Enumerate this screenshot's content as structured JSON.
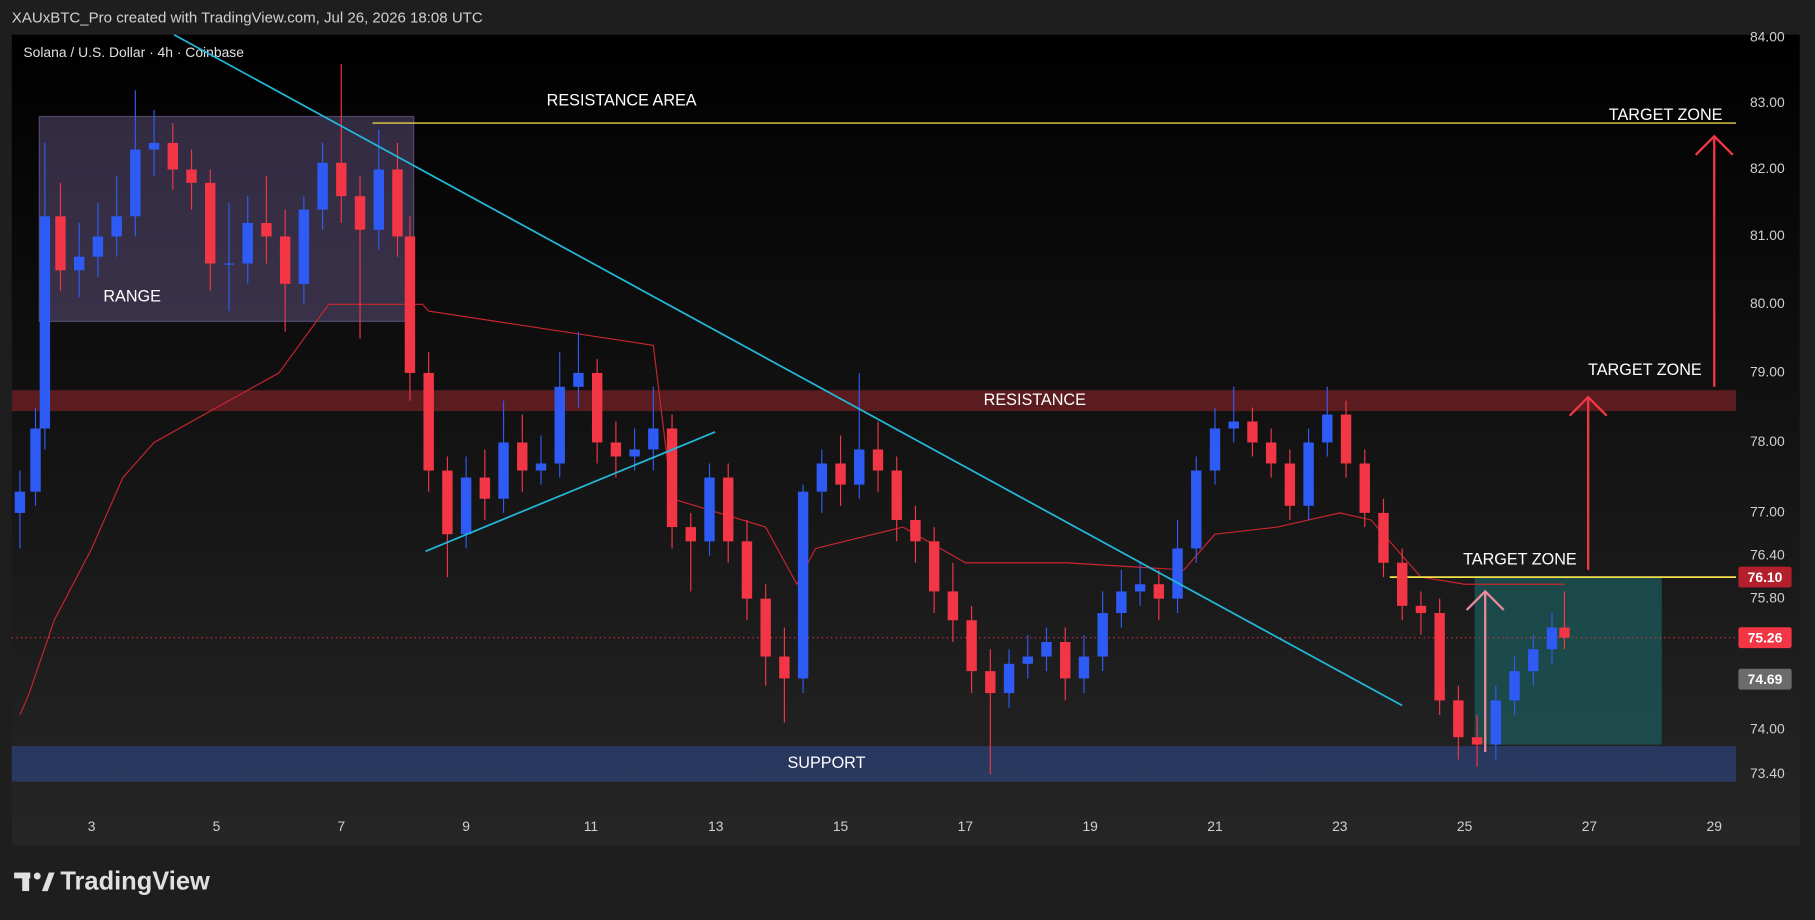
{
  "header": "XAUxBTC_Pro created with TradingView.com, Jul 26, 2026 18:08 UTC",
  "brand": "TradingView",
  "chart_data": {
    "type": "candlestick",
    "title": "Solana / U.S. Dollar · 4h · Coinbase",
    "log_scale": true,
    "grid": false,
    "up_color": "#2f5bf5",
    "down_color": "#f23645",
    "xlim": [
      1.72,
      29.35
    ],
    "xticks": [
      3,
      5,
      7,
      9,
      11,
      13,
      15,
      17,
      19,
      21,
      23,
      25,
      27,
      29
    ],
    "ylim": [
      72.92,
      84.05
    ],
    "yticks": [
      {
        "value": 84,
        "label": "84.00"
      },
      {
        "value": 83,
        "label": "83.00"
      },
      {
        "value": 82,
        "label": "82.00"
      },
      {
        "value": 81,
        "label": "81.00"
      },
      {
        "value": 80,
        "label": "80.00"
      },
      {
        "value": 79,
        "label": "79.00"
      },
      {
        "value": 78,
        "label": "78.00"
      },
      {
        "value": 77,
        "label": "77.00"
      },
      {
        "value": 76.4,
        "label": "76.40"
      },
      {
        "value": 75.8,
        "label": "75.80"
      },
      {
        "value": 74,
        "label": "74.00"
      },
      {
        "value": 73.4,
        "label": "73.40"
      }
    ],
    "x": [
      1.85,
      2.1,
      2.25,
      2.5,
      2.8,
      3.1,
      3.4,
      3.7,
      4.0,
      4.3,
      4.6,
      4.9,
      5.2,
      5.5,
      5.8,
      6.1,
      6.4,
      6.7,
      7.0,
      7.3,
      7.6,
      7.9,
      8.1,
      8.4,
      8.7,
      9.0,
      9.3,
      9.6,
      9.9,
      10.2,
      10.5,
      10.8,
      11.1,
      11.4,
      11.7,
      12.0,
      12.3,
      12.6,
      12.9,
      13.2,
      13.5,
      13.8,
      14.1,
      14.4,
      14.7,
      15.0,
      15.3,
      15.6,
      15.9,
      16.2,
      16.5,
      16.8,
      17.1,
      17.4,
      17.7,
      18.0,
      18.3,
      18.6,
      18.9,
      19.2,
      19.5,
      19.8,
      20.1,
      20.4,
      20.7,
      21.0,
      21.3,
      21.6,
      21.9,
      22.2,
      22.5,
      22.8,
      23.1,
      23.4,
      23.7,
      24.0,
      24.3,
      24.6,
      24.9,
      25.2,
      25.5,
      25.8,
      26.1,
      26.4,
      26.6
    ],
    "open": [
      77.0,
      77.3,
      78.2,
      81.3,
      80.5,
      80.7,
      81.0,
      81.3,
      82.3,
      82.4,
      82.0,
      81.8,
      80.6,
      80.6,
      81.2,
      81.0,
      80.3,
      81.4,
      82.1,
      81.6,
      81.1,
      82.0,
      81.0,
      79.0,
      77.6,
      76.7,
      77.5,
      77.2,
      78.0,
      77.6,
      77.7,
      78.8,
      79.0,
      78.0,
      77.8,
      77.9,
      78.2,
      76.8,
      76.6,
      77.5,
      76.6,
      75.8,
      75.0,
      74.7,
      77.3,
      77.7,
      77.4,
      77.9,
      77.6,
      76.9,
      76.6,
      75.9,
      75.5,
      74.8,
      74.5,
      74.9,
      75.0,
      75.2,
      74.7,
      75.0,
      75.6,
      75.9,
      76.0,
      75.8,
      76.5,
      77.6,
      78.2,
      78.3,
      78.0,
      77.7,
      77.1,
      78.0,
      78.4,
      77.7,
      77.0,
      76.3,
      75.7,
      75.6,
      74.4,
      73.9,
      73.8,
      74.4,
      74.8,
      75.1,
      75.4
    ],
    "high": [
      77.6,
      78.5,
      82.4,
      81.8,
      81.2,
      81.5,
      81.9,
      83.2,
      82.9,
      82.7,
      82.3,
      82.0,
      81.5,
      81.6,
      81.9,
      81.4,
      81.6,
      82.4,
      83.6,
      81.9,
      82.6,
      82.4,
      81.3,
      79.3,
      77.8,
      77.8,
      77.9,
      78.6,
      78.4,
      78.1,
      79.3,
      79.6,
      79.2,
      78.3,
      78.2,
      78.8,
      78.4,
      77.0,
      77.7,
      77.7,
      76.9,
      76.0,
      75.4,
      77.4,
      77.9,
      78.1,
      79.0,
      78.3,
      77.8,
      77.1,
      76.8,
      76.3,
      75.7,
      75.1,
      75.1,
      75.3,
      75.4,
      75.4,
      75.3,
      75.9,
      76.2,
      76.3,
      76.2,
      76.9,
      77.8,
      78.5,
      78.8,
      78.5,
      78.2,
      77.9,
      78.2,
      78.8,
      78.6,
      77.9,
      77.2,
      76.5,
      75.9,
      75.8,
      74.6,
      74.2,
      74.6,
      75.0,
      75.3,
      75.6,
      75.9
    ],
    "low": [
      76.5,
      77.1,
      77.9,
      80.2,
      80.1,
      80.4,
      80.7,
      81.0,
      81.9,
      81.7,
      81.4,
      80.2,
      79.9,
      80.3,
      80.6,
      79.6,
      80.0,
      81.1,
      81.2,
      79.5,
      80.8,
      80.7,
      78.6,
      77.3,
      76.1,
      76.5,
      76.9,
      77.0,
      77.3,
      77.4,
      77.5,
      78.5,
      77.7,
      77.5,
      77.6,
      77.6,
      76.5,
      75.9,
      76.4,
      76.3,
      75.5,
      74.6,
      74.1,
      74.5,
      77.0,
      77.1,
      77.2,
      77.3,
      76.6,
      76.3,
      75.6,
      75.2,
      74.5,
      73.4,
      74.3,
      74.7,
      74.8,
      74.4,
      74.5,
      74.8,
      75.4,
      75.7,
      75.5,
      75.6,
      76.3,
      77.4,
      78.0,
      77.8,
      77.5,
      76.9,
      76.9,
      77.8,
      77.5,
      76.8,
      76.1,
      75.5,
      75.3,
      74.2,
      73.6,
      73.5,
      73.6,
      74.2,
      74.6,
      74.9,
      75.1
    ],
    "close": [
      77.3,
      78.2,
      81.3,
      80.5,
      80.7,
      81.0,
      81.3,
      82.3,
      82.4,
      82.0,
      81.8,
      80.6,
      80.6,
      81.2,
      81.0,
      80.3,
      81.4,
      82.1,
      81.6,
      81.1,
      82.0,
      81.0,
      79.0,
      77.6,
      76.7,
      77.5,
      77.2,
      78.0,
      77.6,
      77.7,
      78.8,
      79.0,
      78.0,
      77.8,
      77.9,
      78.2,
      76.8,
      76.6,
      77.5,
      76.6,
      75.8,
      75.0,
      74.7,
      77.3,
      77.7,
      77.4,
      77.9,
      77.6,
      76.9,
      76.6,
      75.9,
      75.5,
      74.8,
      74.5,
      74.9,
      75.0,
      75.2,
      74.7,
      75.0,
      75.6,
      75.9,
      76.0,
      75.8,
      76.5,
      77.6,
      78.2,
      78.3,
      78.0,
      77.7,
      77.1,
      78.0,
      78.4,
      77.7,
      77.0,
      76.3,
      75.7,
      75.6,
      74.4,
      73.9,
      73.8,
      74.4,
      74.8,
      75.1,
      75.4,
      75.26
    ],
    "indicator": {
      "color": "#c8262f",
      "x": [
        1.85,
        2.0,
        2.4,
        3.0,
        3.5,
        4.0,
        5.0,
        6.0,
        6.8,
        8.3,
        8.4,
        12.0,
        12.3,
        13.8,
        14.3,
        14.6,
        16.0,
        17.0,
        18.6,
        20.5,
        21.0,
        22.0,
        23.0,
        23.5,
        24.3,
        25.0,
        26.6
      ],
      "y": [
        74.2,
        74.5,
        75.5,
        76.5,
        77.5,
        78.0,
        78.5,
        79.0,
        80.0,
        80.0,
        79.9,
        79.4,
        77.2,
        76.8,
        76.0,
        76.5,
        76.8,
        76.3,
        76.3,
        76.2,
        76.7,
        76.8,
        77.0,
        76.9,
        76.1,
        76.0,
        76.0
      ]
    },
    "trendlines": [
      {
        "color": "#22b8d8",
        "x": [
          4.32,
          24.0
        ],
        "y": [
          84.05,
          74.33
        ]
      },
      {
        "color": "#22b8d8",
        "x": [
          8.35,
          12.99
        ],
        "y": [
          76.46,
          78.15
        ]
      }
    ],
    "range_box": {
      "label": "RANGE",
      "xlim": [
        2.16,
        8.16
      ],
      "ylim": [
        79.75,
        82.8
      ],
      "color": "#8a76b8"
    },
    "resistance": {
      "label": "RESISTANCE",
      "ylim": [
        78.45,
        78.75
      ],
      "color": "#6e1f24"
    },
    "support": {
      "label": "SUPPORT",
      "ylim": [
        73.3,
        73.78
      ],
      "color": "#2c3e6e"
    },
    "resistance_area": {
      "label": "RESISTANCE AREA",
      "x": 7.5,
      "level": 82.7,
      "color": "#e6d24a"
    },
    "target_box": {
      "xlim": [
        25.16,
        28.16
      ],
      "ylim": [
        73.8,
        76.1
      ],
      "color": "#1c5a5a"
    },
    "target_level": {
      "x": 23.8,
      "level": 76.1,
      "color": "#f5e14a"
    },
    "target_zones": [
      {
        "label": "TARGET ZONE",
        "x": 29.0,
        "from": 78.8,
        "to": 82.5,
        "color": "#f23645"
      },
      {
        "label": "TARGET ZONE",
        "x": 26.98,
        "from": 76.2,
        "to": 78.65,
        "color": "#f23645"
      },
      {
        "label": "TARGET ZONE",
        "x": 25.33,
        "from": 73.7,
        "to": 75.9,
        "color": "#e88a9a"
      }
    ],
    "price_labels": [
      {
        "value": 76.1,
        "label": "76.10",
        "color": "#b3202c"
      },
      {
        "value": 75.26,
        "color": "#f23645"
      },
      {
        "value": 74.69,
        "color": "#6b6b6b"
      }
    ]
  }
}
